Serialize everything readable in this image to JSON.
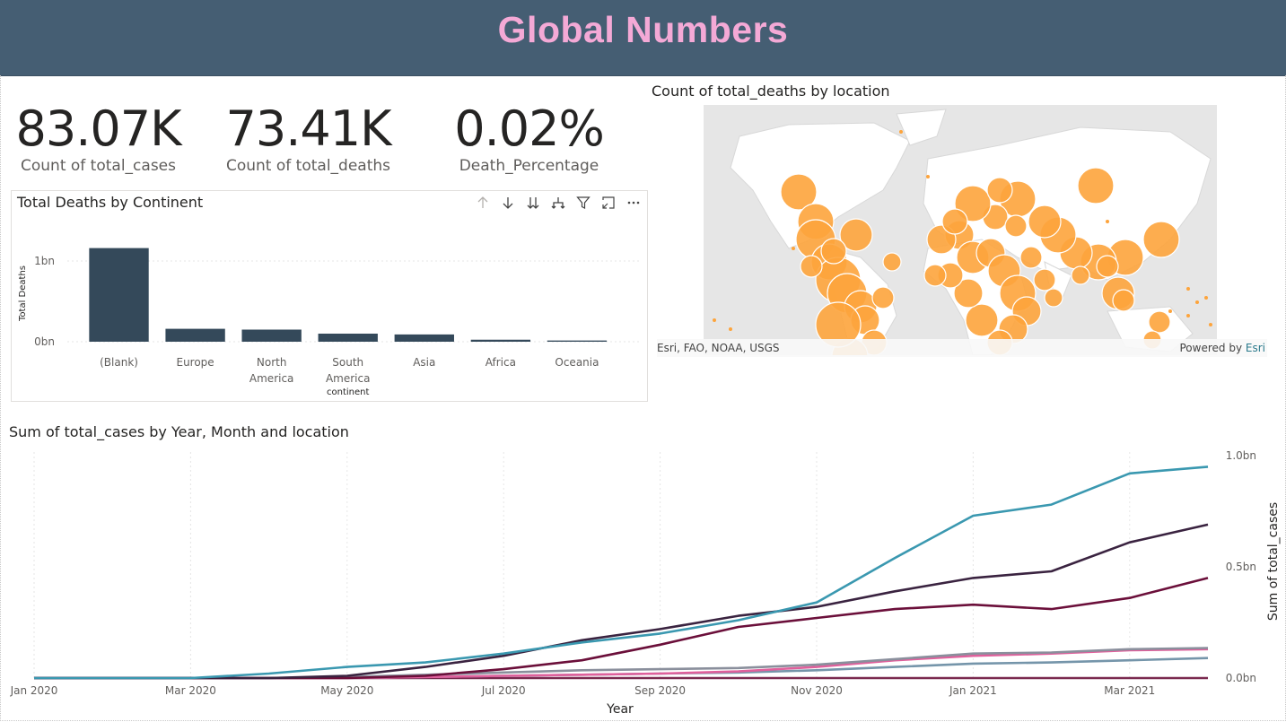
{
  "header": {
    "title": "Global Numbers"
  },
  "kpis": [
    {
      "value": "83.07K",
      "label": "Count of total_cases"
    },
    {
      "value": "73.41K",
      "label": "Count of total_deaths"
    },
    {
      "value": "0.02%",
      "label": "Death_Percentage"
    }
  ],
  "bar_chart": {
    "title": "Total Deaths by Continent",
    "toolbar_icons": [
      "arrow-up-icon",
      "arrow-down-icon",
      "double-arrow-down-icon",
      "expand-hierarchy-icon",
      "filter-icon",
      "focus-mode-icon",
      "more-options-icon"
    ]
  },
  "map_chart": {
    "title": "Count of total_deaths by location",
    "attribution": "Esri, FAO, NOAA, USGS",
    "powered_by": "Powered by",
    "powered_by_brand": "Esri",
    "bubble_color": "#fda43c"
  },
  "line_chart_meta": {
    "title": "Sum of total_cases by Year, Month and location"
  },
  "chart_data": [
    {
      "type": "bar",
      "title": "Total Deaths by Continent",
      "xlabel": "continent",
      "ylabel": "Total Deaths",
      "categories": [
        "(Blank)",
        "Europe",
        "North America",
        "South America",
        "Asia",
        "Africa",
        "Oceania"
      ],
      "category_lines": [
        [
          "(Blank)"
        ],
        [
          "Europe"
        ],
        [
          "North",
          "America"
        ],
        [
          "South",
          "America"
        ],
        [
          "Asia"
        ],
        [
          "Africa"
        ],
        [
          "Oceania"
        ]
      ],
      "values": [
        1.16,
        0.16,
        0.15,
        0.1,
        0.09,
        0.025,
        0.015
      ],
      "unit": "bn",
      "yticks": [
        {
          "value": 0,
          "label": "0bn"
        },
        {
          "value": 1,
          "label": "1bn"
        }
      ],
      "ylim": [
        0,
        1.2
      ],
      "color": "#34495a",
      "grid": true
    },
    {
      "type": "line",
      "title": "Sum of total_cases by Year, Month and location",
      "xlabel": "Year",
      "ylabel": "Sum of total_cases",
      "x": [
        "2020-01",
        "2020-02",
        "2020-03",
        "2020-04",
        "2020-05",
        "2020-06",
        "2020-07",
        "2020-08",
        "2020-09",
        "2020-10",
        "2020-11",
        "2020-12",
        "2021-01",
        "2021-02",
        "2021-03",
        "2021-04"
      ],
      "xticks": [
        "Jan 2020",
        "Mar 2020",
        "May 2020",
        "Jul 2020",
        "Sep 2020",
        "Nov 2020",
        "Jan 2021",
        "Mar 2021"
      ],
      "yticks": [
        {
          "value": 0,
          "label": "0.0bn"
        },
        {
          "value": 0.5,
          "label": "0.5bn"
        },
        {
          "value": 1,
          "label": "1.0bn"
        }
      ],
      "ylim": [
        0,
        1.0
      ],
      "yaxis_position": "right",
      "series": [
        {
          "color": "#3a98b0",
          "values": [
            0,
            0,
            0,
            0.02,
            0.05,
            0.07,
            0.11,
            0.16,
            0.2,
            0.26,
            0.34,
            0.54,
            0.73,
            0.78,
            0.92,
            0.95
          ]
        },
        {
          "color": "#3a2340",
          "values": [
            0,
            0,
            0,
            0,
            0.01,
            0.05,
            0.1,
            0.17,
            0.22,
            0.28,
            0.32,
            0.39,
            0.45,
            0.48,
            0.61,
            0.69
          ]
        },
        {
          "color": "#6b0f3a",
          "values": [
            0,
            0,
            0,
            0,
            0,
            0.01,
            0.04,
            0.08,
            0.15,
            0.23,
            0.27,
            0.31,
            0.33,
            0.31,
            0.36,
            0.45
          ]
        },
        {
          "color": "#8a8f9c",
          "values": [
            0,
            0,
            0,
            0,
            0.005,
            0.015,
            0.025,
            0.035,
            0.04,
            0.045,
            0.06,
            0.085,
            0.11,
            0.115,
            0.13,
            0.135
          ]
        },
        {
          "color": "#e0609c",
          "values": [
            0,
            0,
            0,
            0,
            0,
            0.005,
            0.01,
            0.015,
            0.02,
            0.03,
            0.05,
            0.08,
            0.1,
            0.11,
            0.125,
            0.13
          ]
        },
        {
          "color": "#7595aa",
          "values": [
            0,
            0,
            0,
            0,
            0,
            0.005,
            0.01,
            0.015,
            0.02,
            0.025,
            0.035,
            0.05,
            0.065,
            0.07,
            0.08,
            0.09
          ]
        },
        {
          "color": "#7a2a50",
          "values": [
            0,
            0,
            0,
            0,
            0,
            0,
            0,
            0,
            0,
            0,
            0,
            0,
            0,
            0,
            0,
            0
          ]
        }
      ]
    }
  ]
}
